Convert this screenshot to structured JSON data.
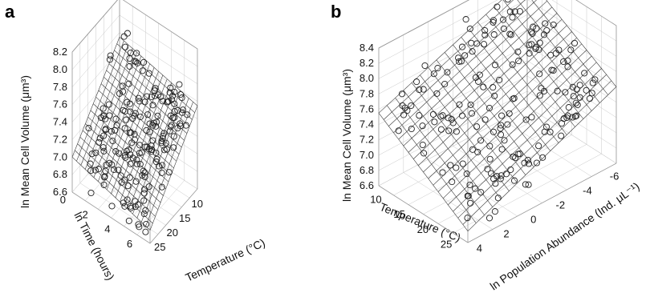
{
  "chart_data": [
    {
      "panel": "a",
      "type": "scatter",
      "zlabel": "ln Mean Cell Volume (μm³)",
      "xlabel": "ln Time (hours)",
      "ylabel": "Temperature (°C)",
      "z_ticks": [
        "6.6",
        "6.8",
        "7.0",
        "7.2",
        "7.4",
        "7.6",
        "7.8",
        "8.0",
        "8.2"
      ],
      "x_ticks": [
        "0",
        "2",
        "4",
        "6"
      ],
      "y_ticks": [
        "25",
        "20",
        "15",
        "10"
      ],
      "zlim": [
        6.6,
        8.2
      ],
      "xlim": [
        0,
        7
      ],
      "ylim": [
        8,
        27
      ],
      "surface": {
        "z_at_min_x_max_y": 7.0,
        "z_at_max_x_max_y": 6.75,
        "z_at_min_x_min_y": 7.75,
        "z_at_max_x_min_y": 7.55
      },
      "grid": true
    },
    {
      "panel": "b",
      "type": "scatter",
      "zlabel": "ln Mean Cell Volume (μm³)",
      "xlabel": "Temperature (°C)",
      "ylabel": "ln Population Abundance (Ind. μL⁻¹)",
      "z_ticks": [
        "6.6",
        "6.8",
        "7.0",
        "7.2",
        "7.4",
        "7.6",
        "7.8",
        "8.0",
        "8.2",
        "8.4"
      ],
      "x_ticks": [
        "10",
        "15",
        "20",
        "25"
      ],
      "y_ticks": [
        "4",
        "2",
        "0",
        "-2",
        "-4",
        "-6"
      ],
      "zlim": [
        6.6,
        8.4
      ],
      "xlim": [
        8,
        27
      ],
      "ylim": [
        -6.5,
        4.5
      ],
      "surface": {
        "z_at_min_x_max_y": 7.55,
        "z_at_max_x_max_y": 6.75,
        "z_at_min_x_min_y": 8.3,
        "z_at_max_x_min_y": 7.6
      },
      "grid": true
    }
  ]
}
